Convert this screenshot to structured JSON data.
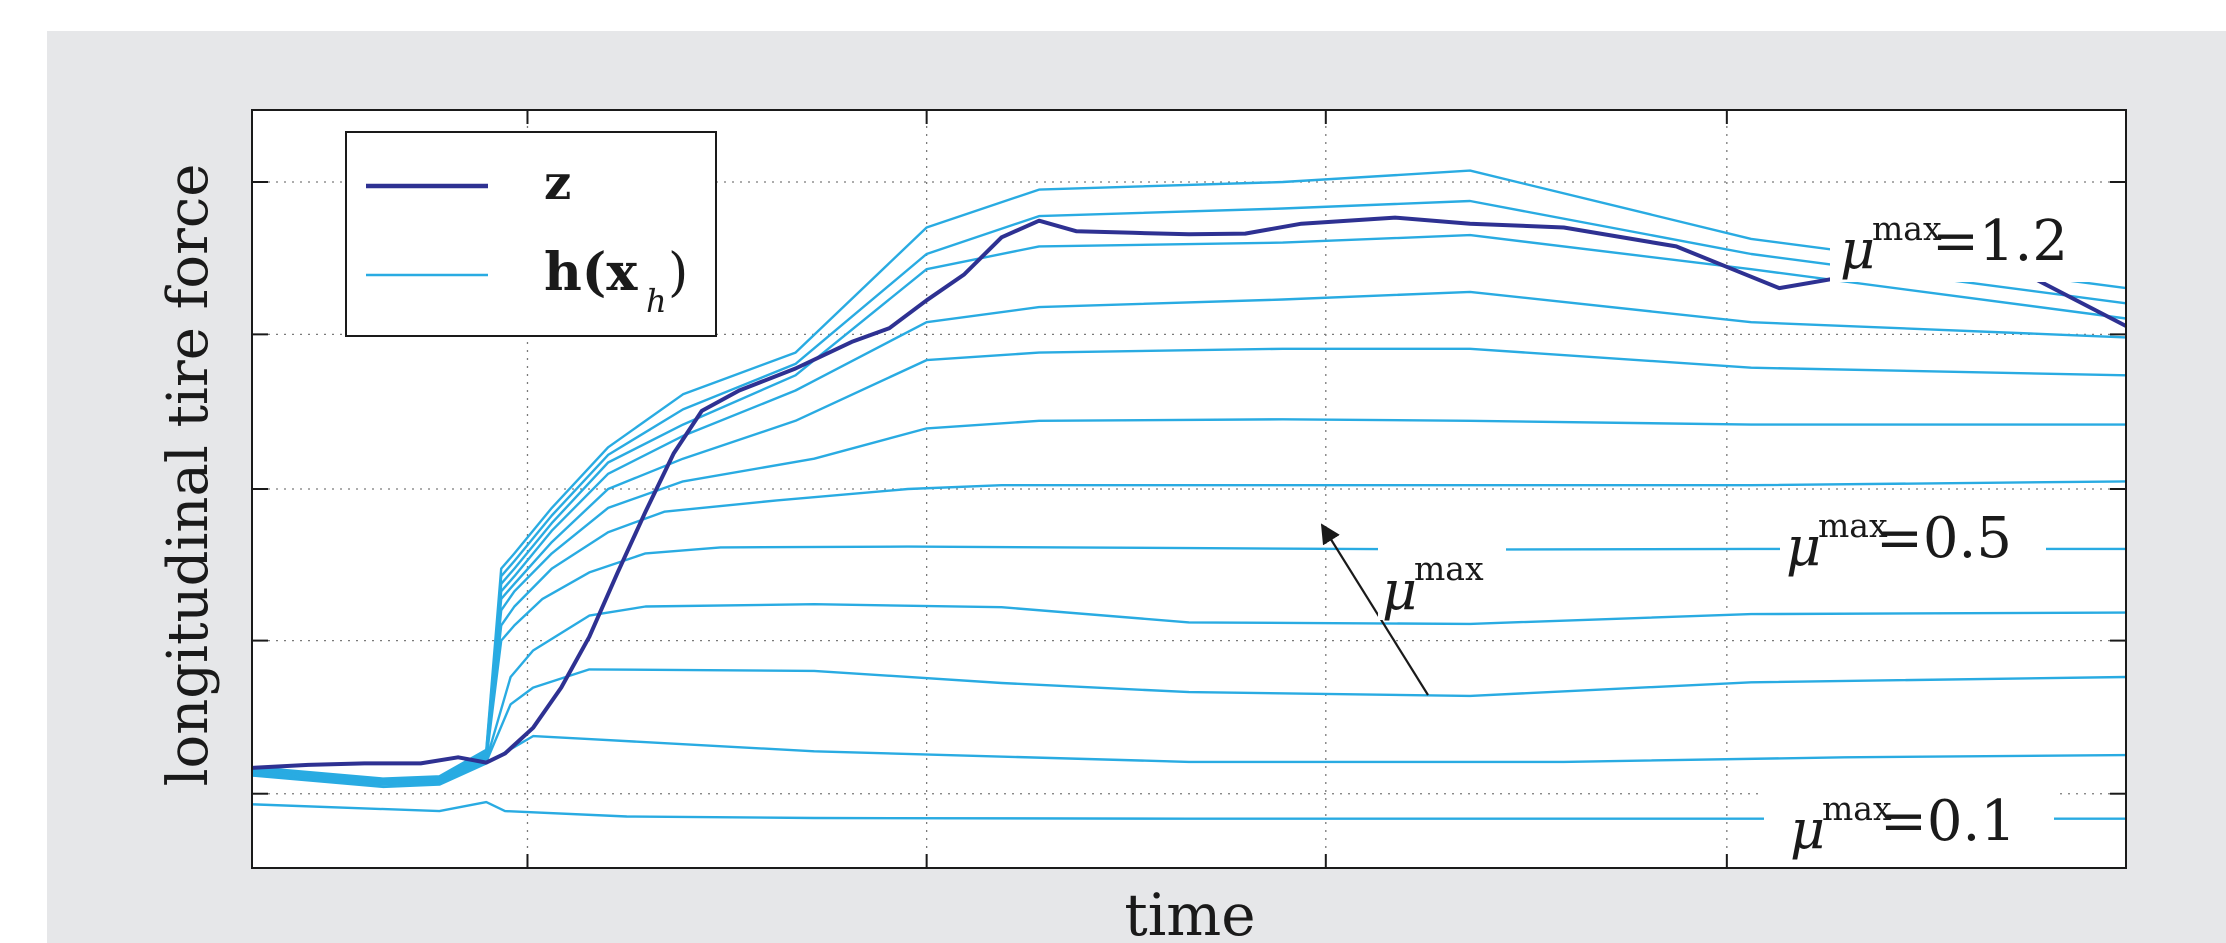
{
  "chart_data": {
    "type": "line",
    "xlabel": "time",
    "ylabel": "longitudinal tire force",
    "legend": {
      "placement": "top-left",
      "entries": [
        {
          "symbol": "z",
          "color": "#2e3192"
        },
        {
          "symbol": "h(x",
          "subscript": "h",
          "close": ")",
          "color": "#29abe2"
        }
      ]
    },
    "grid": true,
    "xlim": [
      0,
      1
    ],
    "ylim": [
      0,
      1
    ],
    "annotations": {
      "mu_symbol": "μ",
      "mu_superscript": "max",
      "labels": [
        {
          "value_text": "=1.2",
          "value": 1.2
        },
        {
          "value_text": "=0.5",
          "value": 0.5
        },
        {
          "value_text": "=0.1",
          "value": 0.1
        }
      ],
      "arrow_label_symbol": "μ",
      "arrow_label_superscript": "max"
    },
    "z_series": {
      "name": "z",
      "color": "#2e3192",
      "points": [
        [
          0.0,
          0.132
        ],
        [
          0.03,
          0.136
        ],
        [
          0.06,
          0.138
        ],
        [
          0.09,
          0.138
        ],
        [
          0.11,
          0.146
        ],
        [
          0.125,
          0.139
        ],
        [
          0.135,
          0.151
        ],
        [
          0.15,
          0.185
        ],
        [
          0.165,
          0.238
        ],
        [
          0.18,
          0.305
        ],
        [
          0.195,
          0.389
        ],
        [
          0.21,
          0.47
        ],
        [
          0.225,
          0.547
        ],
        [
          0.24,
          0.603
        ],
        [
          0.26,
          0.63
        ],
        [
          0.29,
          0.659
        ],
        [
          0.32,
          0.694
        ],
        [
          0.34,
          0.712
        ],
        [
          0.36,
          0.749
        ],
        [
          0.38,
          0.783
        ],
        [
          0.4,
          0.832
        ],
        [
          0.42,
          0.854
        ],
        [
          0.44,
          0.84
        ],
        [
          0.47,
          0.838
        ],
        [
          0.5,
          0.836
        ],
        [
          0.53,
          0.837
        ],
        [
          0.56,
          0.85
        ],
        [
          0.61,
          0.858
        ],
        [
          0.65,
          0.85
        ],
        [
          0.7,
          0.845
        ],
        [
          0.76,
          0.82
        ],
        [
          0.79,
          0.79
        ],
        [
          0.815,
          0.765
        ],
        [
          0.85,
          0.78
        ],
        [
          0.9,
          0.795
        ],
        [
          0.95,
          0.779
        ],
        [
          1.0,
          0.715
        ]
      ]
    },
    "h_series": [
      {
        "mu_max": 0.1,
        "points": [
          [
            0.0,
            0.084
          ],
          [
            0.1,
            0.075
          ],
          [
            0.125,
            0.087
          ],
          [
            0.135,
            0.075
          ],
          [
            0.2,
            0.068
          ],
          [
            0.3,
            0.066
          ],
          [
            0.5,
            0.065
          ],
          [
            0.7,
            0.065
          ],
          [
            0.9,
            0.065
          ],
          [
            1.0,
            0.065
          ]
        ]
      },
      {
        "mu_max": 0.2,
        "points": [
          [
            0.0,
            0.122
          ],
          [
            0.07,
            0.107
          ],
          [
            0.1,
            0.11
          ],
          [
            0.125,
            0.138
          ],
          [
            0.15,
            0.174
          ],
          [
            0.18,
            0.17
          ],
          [
            0.3,
            0.154
          ],
          [
            0.5,
            0.14
          ],
          [
            0.7,
            0.14
          ],
          [
            0.85,
            0.146
          ],
          [
            1.0,
            0.149
          ]
        ]
      },
      {
        "mu_max": 0.3,
        "points": [
          [
            0.0,
            0.123
          ],
          [
            0.07,
            0.11
          ],
          [
            0.1,
            0.112
          ],
          [
            0.125,
            0.14
          ],
          [
            0.138,
            0.216
          ],
          [
            0.15,
            0.238
          ],
          [
            0.18,
            0.262
          ],
          [
            0.3,
            0.26
          ],
          [
            0.4,
            0.244
          ],
          [
            0.5,
            0.232
          ],
          [
            0.65,
            0.227
          ],
          [
            0.8,
            0.245
          ],
          [
            1.0,
            0.252
          ]
        ]
      },
      {
        "mu_max": 0.4,
        "points": [
          [
            0.0,
            0.124
          ],
          [
            0.07,
            0.11
          ],
          [
            0.1,
            0.113
          ],
          [
            0.125,
            0.142
          ],
          [
            0.138,
            0.252
          ],
          [
            0.15,
            0.287
          ],
          [
            0.18,
            0.333
          ],
          [
            0.21,
            0.345
          ],
          [
            0.3,
            0.348
          ],
          [
            0.4,
            0.344
          ],
          [
            0.5,
            0.324
          ],
          [
            0.65,
            0.322
          ],
          [
            0.8,
            0.335
          ],
          [
            1.0,
            0.337
          ]
        ]
      },
      {
        "mu_max": 0.5,
        "points": [
          [
            0.0,
            0.125
          ],
          [
            0.07,
            0.111
          ],
          [
            0.1,
            0.114
          ],
          [
            0.125,
            0.143
          ],
          [
            0.133,
            0.3
          ],
          [
            0.14,
            0.32
          ],
          [
            0.155,
            0.355
          ],
          [
            0.18,
            0.39
          ],
          [
            0.21,
            0.415
          ],
          [
            0.25,
            0.423
          ],
          [
            0.35,
            0.424
          ],
          [
            0.5,
            0.422
          ],
          [
            0.65,
            0.42
          ],
          [
            0.8,
            0.421
          ],
          [
            1.0,
            0.421
          ]
        ]
      },
      {
        "mu_max": 0.6,
        "points": [
          [
            0.0,
            0.127
          ],
          [
            0.07,
            0.112
          ],
          [
            0.1,
            0.115
          ],
          [
            0.125,
            0.145
          ],
          [
            0.133,
            0.32
          ],
          [
            0.14,
            0.345
          ],
          [
            0.16,
            0.395
          ],
          [
            0.19,
            0.443
          ],
          [
            0.22,
            0.47
          ],
          [
            0.28,
            0.485
          ],
          [
            0.35,
            0.5
          ],
          [
            0.4,
            0.505
          ],
          [
            0.5,
            0.505
          ],
          [
            0.65,
            0.505
          ],
          [
            0.8,
            0.505
          ],
          [
            1.0,
            0.51
          ]
        ]
      },
      {
        "mu_max": 0.7,
        "points": [
          [
            0.0,
            0.128
          ],
          [
            0.07,
            0.113
          ],
          [
            0.1,
            0.116
          ],
          [
            0.125,
            0.147
          ],
          [
            0.133,
            0.34
          ],
          [
            0.14,
            0.365
          ],
          [
            0.16,
            0.415
          ],
          [
            0.19,
            0.475
          ],
          [
            0.23,
            0.51
          ],
          [
            0.3,
            0.54
          ],
          [
            0.36,
            0.58
          ],
          [
            0.42,
            0.59
          ],
          [
            0.55,
            0.592
          ],
          [
            0.65,
            0.59
          ],
          [
            0.8,
            0.585
          ],
          [
            1.0,
            0.585
          ]
        ]
      },
      {
        "mu_max": 0.8,
        "points": [
          [
            0.0,
            0.129
          ],
          [
            0.07,
            0.114
          ],
          [
            0.1,
            0.117
          ],
          [
            0.125,
            0.149
          ],
          [
            0.133,
            0.355
          ],
          [
            0.14,
            0.375
          ],
          [
            0.16,
            0.43
          ],
          [
            0.19,
            0.5
          ],
          [
            0.23,
            0.54
          ],
          [
            0.29,
            0.59
          ],
          [
            0.36,
            0.67
          ],
          [
            0.42,
            0.68
          ],
          [
            0.55,
            0.685
          ],
          [
            0.65,
            0.685
          ],
          [
            0.8,
            0.66
          ],
          [
            1.0,
            0.65
          ]
        ]
      },
      {
        "mu_max": 0.9,
        "points": [
          [
            0.0,
            0.13
          ],
          [
            0.07,
            0.115
          ],
          [
            0.1,
            0.118
          ],
          [
            0.125,
            0.151
          ],
          [
            0.133,
            0.365
          ],
          [
            0.14,
            0.385
          ],
          [
            0.16,
            0.445
          ],
          [
            0.19,
            0.52
          ],
          [
            0.23,
            0.57
          ],
          [
            0.29,
            0.63
          ],
          [
            0.36,
            0.72
          ],
          [
            0.42,
            0.74
          ],
          [
            0.55,
            0.75
          ],
          [
            0.65,
            0.76
          ],
          [
            0.8,
            0.72
          ],
          [
            1.0,
            0.7
          ]
        ]
      },
      {
        "mu_max": 1.0,
        "points": [
          [
            0.0,
            0.131
          ],
          [
            0.07,
            0.116
          ],
          [
            0.1,
            0.119
          ],
          [
            0.125,
            0.152
          ],
          [
            0.133,
            0.375
          ],
          [
            0.14,
            0.395
          ],
          [
            0.16,
            0.455
          ],
          [
            0.19,
            0.535
          ],
          [
            0.23,
            0.585
          ],
          [
            0.29,
            0.65
          ],
          [
            0.36,
            0.79
          ],
          [
            0.42,
            0.82
          ],
          [
            0.55,
            0.825
          ],
          [
            0.65,
            0.835
          ],
          [
            0.8,
            0.79
          ],
          [
            1.0,
            0.725
          ]
        ]
      },
      {
        "mu_max": 1.1,
        "points": [
          [
            0.0,
            0.132
          ],
          [
            0.07,
            0.117
          ],
          [
            0.1,
            0.12
          ],
          [
            0.125,
            0.154
          ],
          [
            0.133,
            0.385
          ],
          [
            0.14,
            0.405
          ],
          [
            0.16,
            0.465
          ],
          [
            0.19,
            0.545
          ],
          [
            0.23,
            0.605
          ],
          [
            0.29,
            0.665
          ],
          [
            0.36,
            0.81
          ],
          [
            0.42,
            0.86
          ],
          [
            0.55,
            0.87
          ],
          [
            0.65,
            0.88
          ],
          [
            0.8,
            0.81
          ],
          [
            1.0,
            0.745
          ]
        ]
      },
      {
        "mu_max": 1.2,
        "points": [
          [
            0.0,
            0.133
          ],
          [
            0.07,
            0.118
          ],
          [
            0.1,
            0.121
          ],
          [
            0.125,
            0.156
          ],
          [
            0.133,
            0.395
          ],
          [
            0.14,
            0.415
          ],
          [
            0.16,
            0.475
          ],
          [
            0.19,
            0.555
          ],
          [
            0.23,
            0.625
          ],
          [
            0.29,
            0.68
          ],
          [
            0.36,
            0.845
          ],
          [
            0.42,
            0.895
          ],
          [
            0.55,
            0.905
          ],
          [
            0.65,
            0.92
          ],
          [
            0.8,
            0.83
          ],
          [
            1.0,
            0.765
          ]
        ]
      }
    ]
  }
}
